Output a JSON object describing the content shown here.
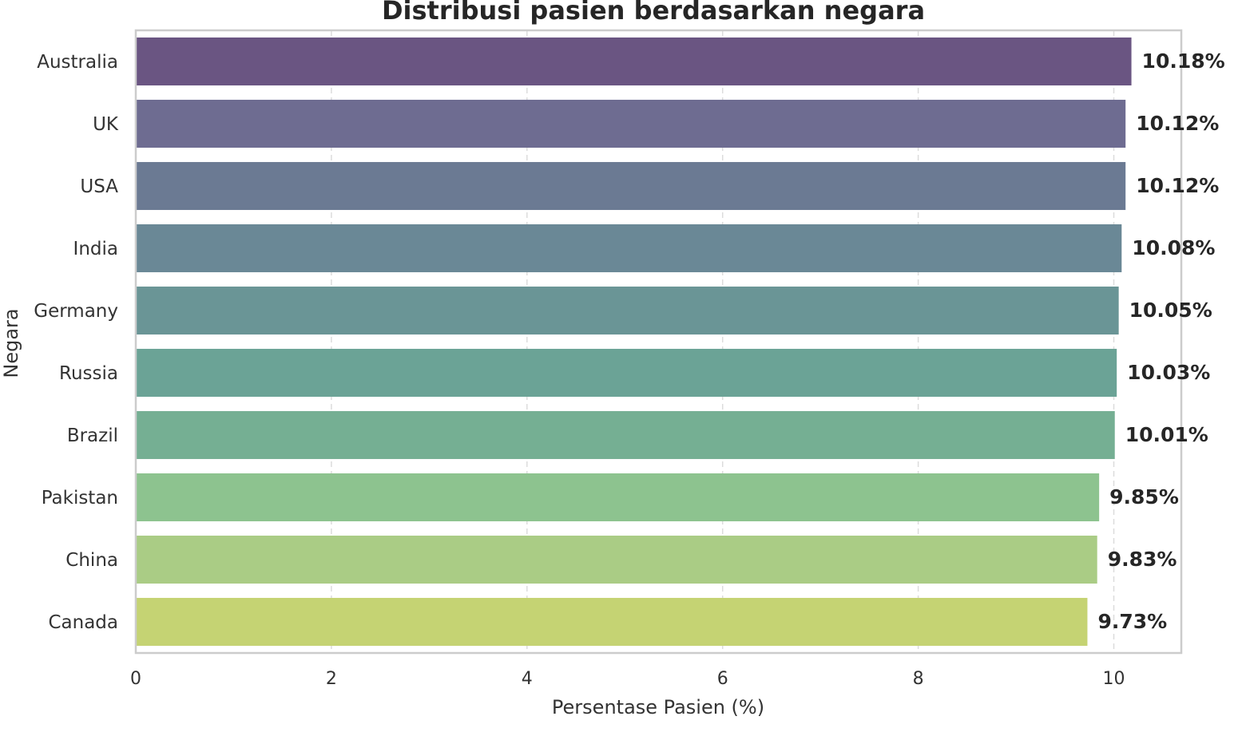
{
  "chart_data": {
    "type": "bar",
    "orientation": "horizontal",
    "title": "Distribusi pasien berdasarkan negara",
    "xlabel": "Persentase Pasien (%)",
    "ylabel": "Negara",
    "categories": [
      "Australia",
      "UK",
      "USA",
      "India",
      "Germany",
      "Russia",
      "Brazil",
      "Pakistan",
      "China",
      "Canada"
    ],
    "values": [
      10.18,
      10.12,
      10.12,
      10.08,
      10.05,
      10.03,
      10.01,
      9.85,
      9.83,
      9.73
    ],
    "value_labels": [
      "10.18%",
      "10.12%",
      "10.12%",
      "10.08%",
      "10.05%",
      "10.03%",
      "10.01%",
      "9.85%",
      "9.83%",
      "9.73%"
    ],
    "xticks": [
      0,
      2,
      4,
      6,
      8,
      10
    ],
    "xlim": [
      0,
      10.69
    ],
    "grid": "vertical dashed",
    "colors": [
      "#6a5582",
      "#6e6c91",
      "#6b7a93",
      "#6a8896",
      "#6a9596",
      "#6ba396",
      "#75af93",
      "#8dc38f",
      "#aacc85",
      "#c5d373"
    ]
  }
}
